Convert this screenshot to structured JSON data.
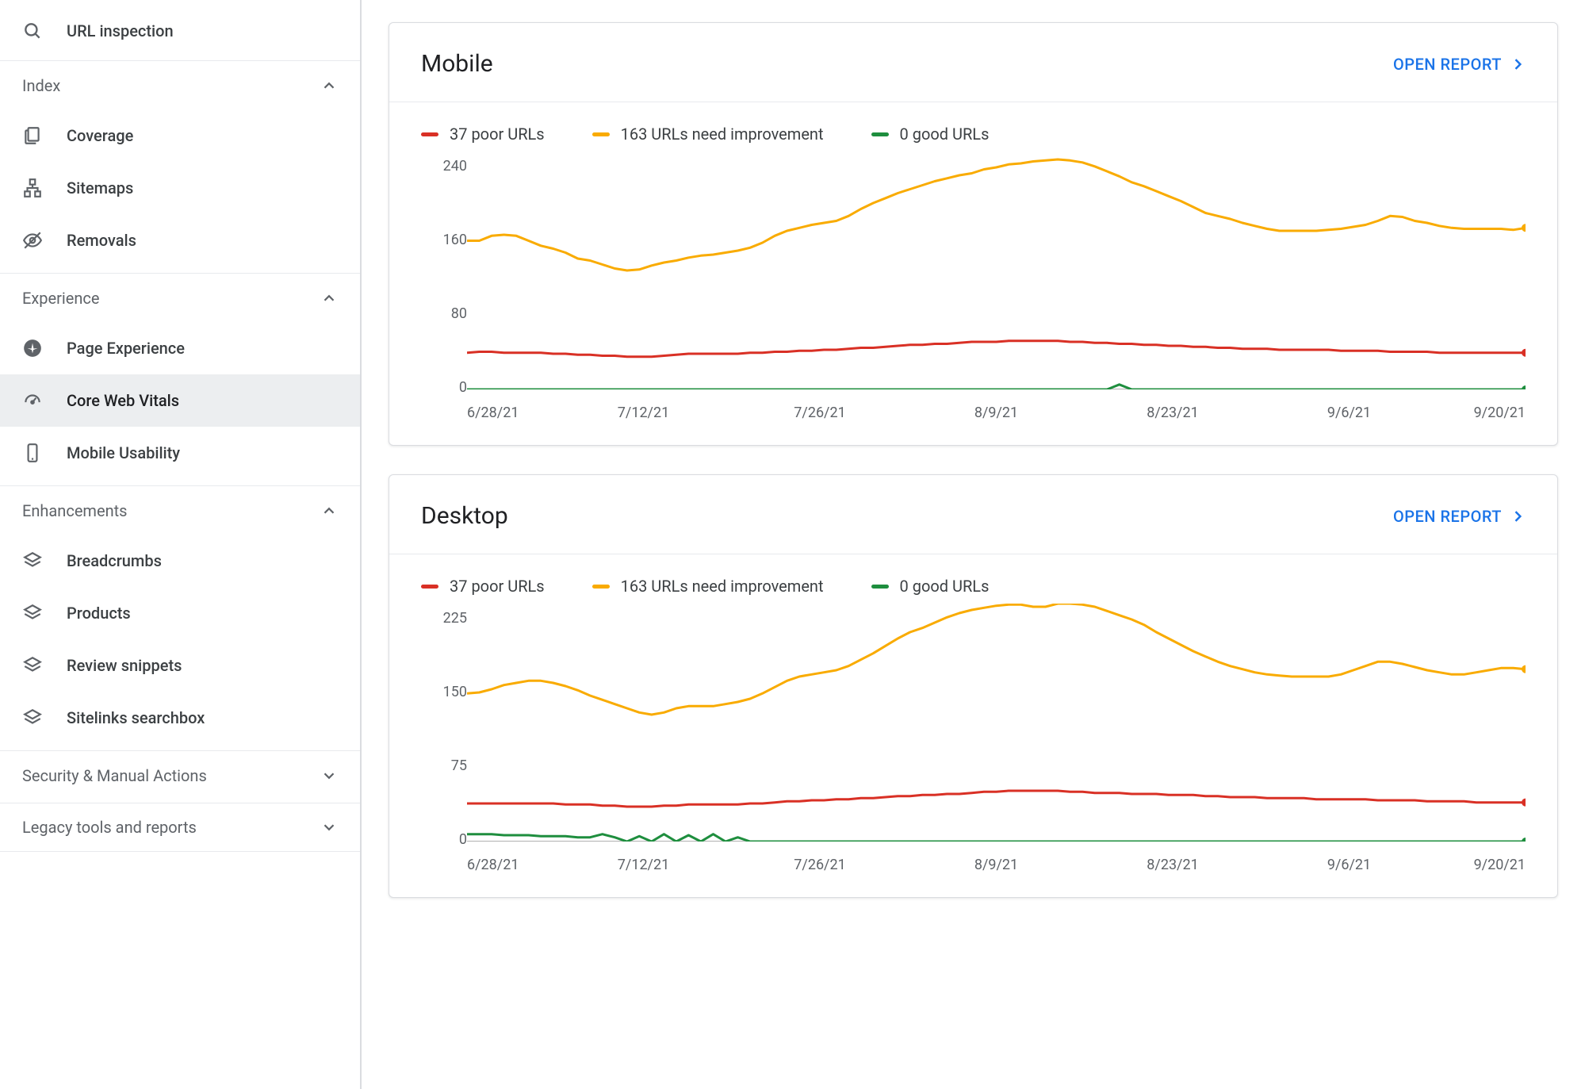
{
  "colors": {
    "poor": "#d93025",
    "need": "#f9ab00",
    "good": "#1e8e3e",
    "grid": "#b0b0b0",
    "link": "#1a73e8",
    "text": "#202124",
    "muted": "#5f6368",
    "border": "#dadce0",
    "active_bg": "#eceef0"
  },
  "sidebar": {
    "url_inspection": "URL inspection",
    "sections": {
      "index": {
        "title": "Index",
        "expanded": true,
        "items": [
          {
            "id": "coverage",
            "label": "Coverage",
            "icon": "coverage-icon"
          },
          {
            "id": "sitemaps",
            "label": "Sitemaps",
            "icon": "sitemaps-icon"
          },
          {
            "id": "removals",
            "label": "Removals",
            "icon": "removals-icon"
          }
        ]
      },
      "experience": {
        "title": "Experience",
        "expanded": true,
        "items": [
          {
            "id": "page-experience",
            "label": "Page Experience",
            "icon": "page-experience-icon"
          },
          {
            "id": "core-web-vitals",
            "label": "Core Web Vitals",
            "icon": "core-web-vitals-icon",
            "active": true
          },
          {
            "id": "mobile-usability",
            "label": "Mobile Usability",
            "icon": "mobile-usability-icon"
          }
        ]
      },
      "enhancements": {
        "title": "Enhancements",
        "expanded": true,
        "items": [
          {
            "id": "breadcrumbs",
            "label": "Breadcrumbs",
            "icon": "layers-icon"
          },
          {
            "id": "products",
            "label": "Products",
            "icon": "layers-icon"
          },
          {
            "id": "review-snippets",
            "label": "Review snippets",
            "icon": "layers-icon"
          },
          {
            "id": "sitelinks-searchbox",
            "label": "Sitelinks searchbox",
            "icon": "layers-icon"
          }
        ]
      },
      "security": {
        "title": "Security & Manual Actions",
        "expanded": false
      },
      "legacy": {
        "title": "Legacy tools and reports",
        "expanded": false
      }
    }
  },
  "open_report_label": "OPEN REPORT",
  "legend_labels": {
    "poor": "37 poor URLs",
    "need": "163 URLs need improvement",
    "good": "0 good URLs"
  },
  "xaxis_labels": [
    "6/28/21",
    "7/12/21",
    "7/26/21",
    "8/9/21",
    "8/23/21",
    "9/6/21",
    "9/20/21"
  ],
  "charts": {
    "mobile": {
      "title": "Mobile",
      "ymax": 240,
      "yticks": [
        240,
        160,
        80,
        0
      ],
      "series": {
        "need": [
          150,
          150,
          155,
          156,
          155,
          150,
          145,
          142,
          138,
          132,
          130,
          126,
          122,
          120,
          121,
          125,
          128,
          130,
          133,
          135,
          136,
          138,
          140,
          143,
          148,
          155,
          160,
          163,
          166,
          168,
          170,
          175,
          182,
          188,
          193,
          198,
          202,
          206,
          210,
          213,
          216,
          218,
          222,
          224,
          227,
          228,
          230,
          231,
          232,
          231,
          229,
          225,
          220,
          215,
          209,
          205,
          200,
          195,
          190,
          184,
          178,
          175,
          172,
          168,
          165,
          162,
          160,
          160,
          160,
          160,
          161,
          162,
          164,
          166,
          170,
          175,
          174,
          170,
          168,
          165,
          163,
          162,
          162,
          162,
          162,
          161,
          163
        ],
        "poor": [
          37,
          38,
          38,
          37,
          37,
          37,
          37,
          36,
          36,
          35,
          35,
          34,
          34,
          33,
          33,
          33,
          34,
          35,
          36,
          36,
          36,
          36,
          36,
          37,
          37,
          38,
          38,
          39,
          39,
          40,
          40,
          41,
          42,
          42,
          43,
          44,
          45,
          45,
          46,
          46,
          47,
          48,
          48,
          48,
          49,
          49,
          49,
          49,
          49,
          48,
          48,
          47,
          47,
          46,
          46,
          45,
          45,
          44,
          44,
          43,
          43,
          42,
          42,
          41,
          41,
          41,
          40,
          40,
          40,
          40,
          40,
          39,
          39,
          39,
          39,
          38,
          38,
          38,
          38,
          37,
          37,
          37,
          37,
          37,
          37,
          37,
          37
        ],
        "good": [
          0,
          0,
          0,
          0,
          0,
          0,
          0,
          0,
          0,
          0,
          0,
          0,
          0,
          0,
          0,
          0,
          0,
          0,
          0,
          0,
          0,
          0,
          0,
          0,
          0,
          0,
          0,
          0,
          0,
          0,
          0,
          0,
          0,
          0,
          0,
          0,
          0,
          0,
          0,
          0,
          0,
          0,
          0,
          0,
          0,
          0,
          0,
          0,
          0,
          0,
          0,
          0,
          0,
          5,
          0,
          0,
          0,
          0,
          0,
          0,
          0,
          0,
          0,
          0,
          0,
          0,
          0,
          0,
          0,
          0,
          0,
          0,
          0,
          0,
          0,
          0,
          0,
          0,
          0,
          0,
          0,
          0,
          0,
          0,
          0,
          0,
          0
        ]
      }
    },
    "desktop": {
      "title": "Desktop",
      "ymax": 225,
      "yticks": [
        225,
        150,
        75,
        0
      ],
      "series": {
        "need": [
          140,
          141,
          144,
          148,
          150,
          152,
          152,
          150,
          147,
          143,
          138,
          134,
          130,
          126,
          122,
          120,
          122,
          126,
          128,
          128,
          128,
          130,
          132,
          135,
          140,
          146,
          152,
          156,
          158,
          160,
          162,
          166,
          172,
          178,
          185,
          192,
          198,
          202,
          207,
          212,
          216,
          219,
          221,
          223,
          224,
          224,
          222,
          222,
          225,
          225,
          224,
          222,
          218,
          214,
          210,
          205,
          198,
          192,
          186,
          180,
          175,
          170,
          166,
          163,
          160,
          158,
          157,
          156,
          156,
          156,
          156,
          158,
          162,
          166,
          170,
          170,
          168,
          165,
          162,
          160,
          158,
          158,
          160,
          162,
          164,
          164,
          163
        ],
        "poor": [
          36,
          36,
          36,
          36,
          36,
          36,
          36,
          36,
          35,
          35,
          35,
          34,
          34,
          33,
          33,
          33,
          34,
          34,
          35,
          35,
          35,
          35,
          35,
          36,
          36,
          37,
          38,
          38,
          39,
          39,
          40,
          40,
          41,
          41,
          42,
          43,
          43,
          44,
          44,
          45,
          45,
          46,
          47,
          47,
          48,
          48,
          48,
          48,
          48,
          47,
          47,
          46,
          46,
          46,
          45,
          45,
          45,
          44,
          44,
          44,
          43,
          43,
          42,
          42,
          42,
          41,
          41,
          41,
          41,
          40,
          40,
          40,
          40,
          40,
          39,
          39,
          39,
          39,
          38,
          38,
          38,
          38,
          37,
          37,
          37,
          37,
          37
        ],
        "good": [
          7,
          7,
          7,
          6,
          6,
          6,
          5,
          5,
          5,
          4,
          4,
          7,
          4,
          0,
          5,
          0,
          7,
          0,
          6,
          0,
          7,
          0,
          4,
          0,
          0,
          0,
          0,
          0,
          0,
          0,
          0,
          0,
          0,
          0,
          0,
          0,
          0,
          0,
          0,
          0,
          0,
          0,
          0,
          0,
          0,
          0,
          0,
          0,
          0,
          0,
          0,
          0,
          0,
          0,
          0,
          0,
          0,
          0,
          0,
          0,
          0,
          0,
          0,
          0,
          0,
          0,
          0,
          0,
          0,
          0,
          0,
          0,
          0,
          0,
          0,
          0,
          0,
          0,
          0,
          0,
          0,
          0,
          0,
          0,
          0,
          0,
          0
        ]
      }
    }
  }
}
